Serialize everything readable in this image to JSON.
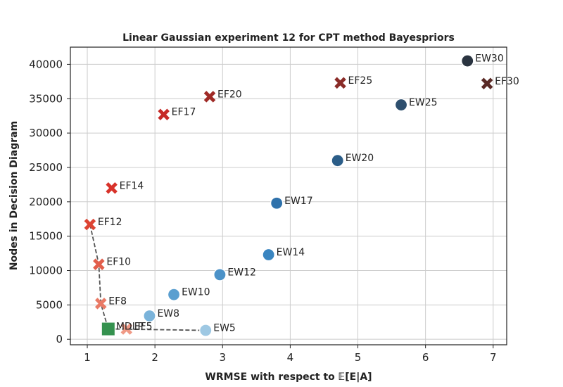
{
  "chart_data": {
    "type": "scatter",
    "title": "Linear Gaussian experiment 12 for CPT method Bayespriors",
    "xlabel": "WRMSE with respect to 𝔼[E|A]",
    "ylabel": "Nodes in Decision Diagram",
    "xlim": [
      0.75,
      7.2
    ],
    "ylim": [
      -800,
      42500
    ],
    "xticks": [
      1,
      2,
      3,
      4,
      5,
      6,
      7
    ],
    "yticks": [
      0,
      5000,
      10000,
      15000,
      20000,
      25000,
      30000,
      35000,
      40000
    ],
    "grid": true,
    "points": [
      {
        "label": "EW5",
        "x": 2.75,
        "y": 1300,
        "marker": "circle",
        "color": "#9ec8e3"
      },
      {
        "label": "EW8",
        "x": 1.92,
        "y": 3400,
        "marker": "circle",
        "color": "#7ab3da"
      },
      {
        "label": "EW10",
        "x": 2.28,
        "y": 6500,
        "marker": "circle",
        "color": "#5a9fd0"
      },
      {
        "label": "EW12",
        "x": 2.96,
        "y": 9400,
        "marker": "circle",
        "color": "#4c92c8"
      },
      {
        "label": "EW14",
        "x": 3.68,
        "y": 12300,
        "marker": "circle",
        "color": "#3a85c0"
      },
      {
        "label": "EW17",
        "x": 3.8,
        "y": 19800,
        "marker": "circle",
        "color": "#2f72ab"
      },
      {
        "label": "EW20",
        "x": 4.7,
        "y": 26000,
        "marker": "circle",
        "color": "#2b5d88"
      },
      {
        "label": "EW25",
        "x": 5.64,
        "y": 34100,
        "marker": "circle",
        "color": "#2e4f6e"
      },
      {
        "label": "EW30",
        "x": 6.62,
        "y": 40500,
        "marker": "circle",
        "color": "#2a3440"
      },
      {
        "label": "EF5",
        "x": 1.58,
        "y": 1500,
        "marker": "x",
        "color": "#f09a86"
      },
      {
        "label": "EF8",
        "x": 1.2,
        "y": 5200,
        "marker": "x",
        "color": "#e97a66"
      },
      {
        "label": "EF10",
        "x": 1.17,
        "y": 10900,
        "marker": "x",
        "color": "#e25f4c"
      },
      {
        "label": "EF12",
        "x": 1.04,
        "y": 16700,
        "marker": "x",
        "color": "#dd4433"
      },
      {
        "label": "EF14",
        "x": 1.36,
        "y": 22000,
        "marker": "x",
        "color": "#d8322a"
      },
      {
        "label": "EF17",
        "x": 2.13,
        "y": 32700,
        "marker": "x",
        "color": "#c62a27"
      },
      {
        "label": "EF20",
        "x": 2.81,
        "y": 35300,
        "marker": "x",
        "color": "#9f2a26"
      },
      {
        "label": "EF25",
        "x": 4.74,
        "y": 37300,
        "marker": "x",
        "color": "#8a2c28"
      },
      {
        "label": "EF30",
        "x": 6.91,
        "y": 37200,
        "marker": "x",
        "color": "#5a2a26"
      },
      {
        "label": "MDLP",
        "x": 1.31,
        "y": 1500,
        "marker": "square",
        "color": "#35924f"
      }
    ],
    "pareto_front": [
      {
        "x": 1.04,
        "y": 16700
      },
      {
        "x": 1.17,
        "y": 10900
      },
      {
        "x": 1.2,
        "y": 5200
      },
      {
        "x": 1.31,
        "y": 1500
      },
      {
        "x": 2.75,
        "y": 1300
      }
    ]
  }
}
